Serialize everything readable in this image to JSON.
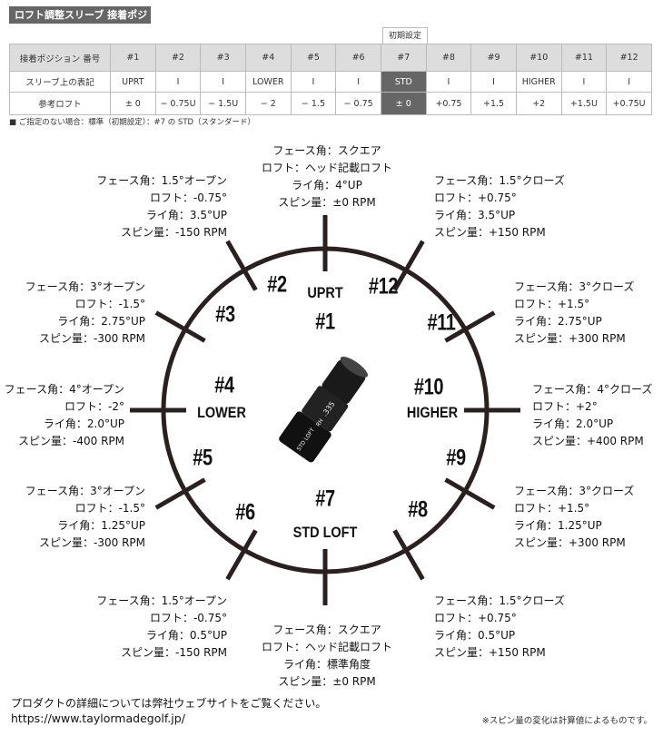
{
  "title": "ロフト調整スリーブ 接着ポジション",
  "initial_setting_label": "初期設定",
  "table": {
    "rows": [
      {
        "label": "接着ポジション 番号",
        "cells": [
          "#1",
          "#2",
          "#3",
          "#4",
          "#5",
          "#6",
          "#7",
          "#8",
          "#9",
          "#10",
          "#11",
          "#12"
        ]
      },
      {
        "label": "スリーブ上の表記",
        "cells": [
          "UPRT",
          "I",
          "I",
          "LOWER",
          "I",
          "I",
          "STD",
          "I",
          "I",
          "HIGHER",
          "I",
          "I"
        ]
      },
      {
        "label": "参考ロフト",
        "cells": [
          "± 0",
          "− 0.75U",
          "− 1.5U",
          "− 2",
          "− 1.5",
          "− 0.75",
          "± 0",
          "+0.75",
          "+1.5",
          "+2",
          "+1.5U",
          "+0.75U"
        ]
      }
    ],
    "highlight_column": 7
  },
  "note": "■ ご指定のない場合：標準（初期設定）：#7 の STD（スタンダード）",
  "dial": {
    "sleeve_labels": [
      ".335",
      "RH",
      "STD LOFT"
    ],
    "positions": [
      {
        "num": "#1",
        "mark": "UPRT",
        "lines": [
          "フェース角：スクエア",
          "ロフト：ヘッド記載ロフト",
          "ライ角：4°UP",
          "スピン量：±0 RPM"
        ]
      },
      {
        "num": "#2",
        "mark": "",
        "lines": [
          "フェース角：1.5°オープン",
          "ロフト：-0.75°",
          "ライ角：3.5°UP",
          "スピン量：-150 RPM"
        ]
      },
      {
        "num": "#3",
        "mark": "",
        "lines": [
          "フェース角：3°オープン",
          "ロフト：-1.5°",
          "ライ角：2.75°UP",
          "スピン量：-300 RPM"
        ]
      },
      {
        "num": "#4",
        "mark": "LOWER",
        "lines": [
          "フェース角：4°オープン",
          "ロフト：-2°",
          "ライ角：2.0°UP",
          "スピン量：-400 RPM"
        ]
      },
      {
        "num": "#5",
        "mark": "",
        "lines": [
          "フェース角：3°オープン",
          "ロフト：-1.5°",
          "ライ角：1.25°UP",
          "スピン量：-300 RPM"
        ]
      },
      {
        "num": "#6",
        "mark": "",
        "lines": [
          "フェース角：1.5°オープン",
          "ロフト：-0.75°",
          "ライ角：0.5°UP",
          "スピン量：-150 RPM"
        ]
      },
      {
        "num": "#7",
        "mark": "STD LOFT",
        "lines": [
          "フェース角：スクエア",
          "ロフト：ヘッド記載ロフト",
          "ライ角：標準角度",
          "スピン量：±0 RPM"
        ]
      },
      {
        "num": "#8",
        "mark": "",
        "lines": [
          "フェース角：1.5°クローズ",
          "ロフト：+0.75°",
          "ライ角：0.5°UP",
          "スピン量：+150 RPM"
        ]
      },
      {
        "num": "#9",
        "mark": "",
        "lines": [
          "フェース角：3°クローズ",
          "ロフト：+1.5°",
          "ライ角：1.25°UP",
          "スピン量：+300 RPM"
        ]
      },
      {
        "num": "#10",
        "mark": "HIGHER",
        "lines": [
          "フェース角：4°クローズ",
          "ロフト：+2°",
          "ライ角：2.0°UP",
          "スピン量：+400 RPM"
        ]
      },
      {
        "num": "#11",
        "mark": "",
        "lines": [
          "フェース角：3°クローズ",
          "ロフト：+1.5°",
          "ライ角：2.75°UP",
          "スピン量：+300 RPM"
        ]
      },
      {
        "num": "#12",
        "mark": "",
        "lines": [
          "フェース角：1.5°クローズ",
          "ロフト：+0.75°",
          "ライ角：3.5°UP",
          "スピン量：+150 RPM"
        ]
      }
    ]
  },
  "footer": {
    "details": "プロダクトの詳細については弊社ウェブサイトをご覧ください。",
    "url": "https://www.taylormadegolf.jp/",
    "spin_note": "※スピン量の変化は計算値によるものです。"
  }
}
